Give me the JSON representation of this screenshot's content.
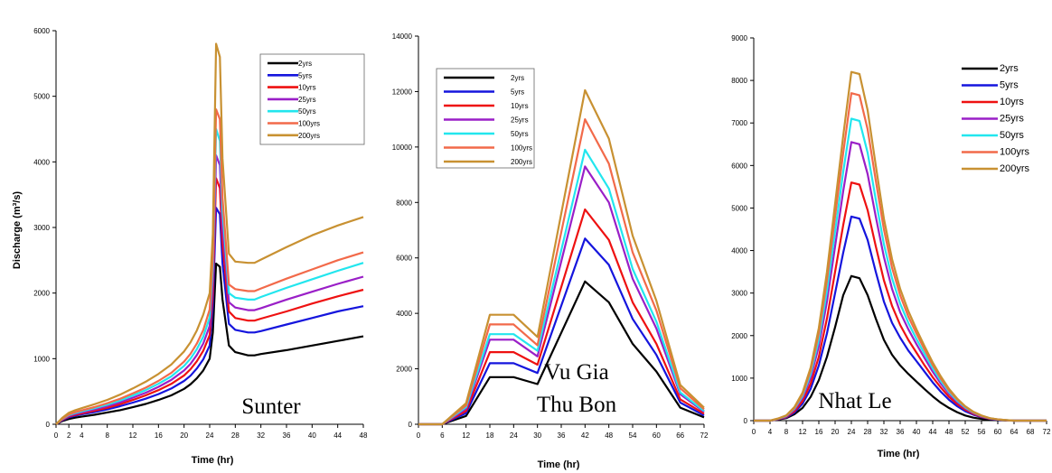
{
  "colors": {
    "2yrs": "#000000",
    "5yrs": "#1515dd",
    "10yrs": "#ee1111",
    "25yrs": "#9a1fc7",
    "50yrs": "#22e6ee",
    "100yrs": "#f26a4a",
    "200yrs": "#c89132"
  },
  "chart_data": [
    {
      "type": "line",
      "annotation": "Sunter",
      "xlabel": "Time (hr)",
      "ylabel": "Discharge (m³/s)",
      "xlim": [
        0,
        48
      ],
      "ylim": [
        0,
        6000
      ],
      "xticks": [
        "0",
        "2",
        "4",
        "8",
        "12",
        "16",
        "20",
        "24",
        "28",
        "32",
        "36",
        "40",
        "44",
        "48"
      ],
      "yticks": [
        "0",
        "1000",
        "2000",
        "3000",
        "4000",
        "5000",
        "6000"
      ],
      "legend_position": "top-right",
      "grid": false,
      "x": [
        0,
        1,
        2,
        3,
        4,
        6,
        8,
        10,
        12,
        14,
        16,
        18,
        20,
        21,
        22,
        23,
        24,
        24.5,
        25,
        25.6,
        26,
        27,
        28,
        30,
        31,
        32,
        36,
        40,
        44,
        48
      ],
      "series": [
        {
          "name": "2yrs",
          "key": "2yrs",
          "values": [
            0,
            50,
            80,
            100,
            115,
            145,
            180,
            215,
            260,
            310,
            370,
            440,
            540,
            610,
            700,
            820,
            1000,
            1400,
            2450,
            2400,
            1900,
            1200,
            1100,
            1050,
            1050,
            1070,
            1130,
            1200,
            1270,
            1340
          ]
        },
        {
          "name": "5yrs",
          "key": "5yrs",
          "values": [
            0,
            60,
            105,
            130,
            150,
            185,
            225,
            275,
            330,
            390,
            460,
            545,
            660,
            740,
            850,
            990,
            1200,
            1800,
            3300,
            3200,
            2450,
            1530,
            1440,
            1400,
            1400,
            1420,
            1520,
            1620,
            1720,
            1800
          ]
        },
        {
          "name": "10yrs",
          "key": "10yrs",
          "values": [
            0,
            68,
            118,
            145,
            165,
            205,
            250,
            305,
            370,
            440,
            520,
            615,
            745,
            840,
            960,
            1120,
            1360,
            2000,
            3750,
            3600,
            2750,
            1720,
            1620,
            1580,
            1580,
            1610,
            1720,
            1840,
            1950,
            2050
          ]
        },
        {
          "name": "25yrs",
          "key": "25yrs",
          "values": [
            0,
            74,
            130,
            160,
            182,
            225,
            275,
            335,
            405,
            480,
            570,
            675,
            820,
            920,
            1055,
            1230,
            1500,
            2200,
            4100,
            3950,
            3000,
            1860,
            1780,
            1740,
            1740,
            1770,
            1900,
            2020,
            2140,
            2250
          ]
        },
        {
          "name": "50yrs",
          "key": "50yrs",
          "values": [
            0,
            80,
            140,
            172,
            197,
            245,
            298,
            362,
            438,
            520,
            617,
            730,
            890,
            1000,
            1145,
            1335,
            1630,
            2400,
            4500,
            4320,
            3250,
            2000,
            1930,
            1900,
            1900,
            1940,
            2080,
            2210,
            2340,
            2460
          ]
        },
        {
          "name": "100yrs",
          "key": "100yrs",
          "values": [
            0,
            85,
            150,
            185,
            210,
            262,
            320,
            388,
            470,
            558,
            660,
            783,
            955,
            1075,
            1230,
            1435,
            1750,
            2550,
            4800,
            4650,
            3450,
            2130,
            2060,
            2030,
            2030,
            2070,
            2220,
            2360,
            2500,
            2620
          ]
        },
        {
          "name": "200yrs",
          "key": "200yrs",
          "values": [
            0,
            100,
            175,
            215,
            245,
            305,
            372,
            452,
            546,
            648,
            767,
            910,
            1110,
            1250,
            1430,
            1670,
            2000,
            2900,
            5800,
            5600,
            4050,
            2600,
            2480,
            2460,
            2460,
            2510,
            2700,
            2880,
            3030,
            3160
          ]
        }
      ]
    },
    {
      "type": "line",
      "annotation": [
        "Vu Gia",
        "Thu Bon"
      ],
      "xlabel": "Time (hr)",
      "ylabel": "",
      "xlim": [
        0,
        72
      ],
      "ylim": [
        0,
        14000
      ],
      "xticks": [
        "0",
        "6",
        "12",
        "18",
        "24",
        "30",
        "36",
        "42",
        "48",
        "54",
        "60",
        "66",
        "72"
      ],
      "yticks": [
        "0",
        "2000",
        "4000",
        "6000",
        "8000",
        "10000",
        "12000",
        "14000"
      ],
      "legend_position": "top-left",
      "grid": false,
      "x": [
        0,
        6,
        12,
        18,
        24,
        30,
        42,
        48,
        54,
        60,
        66,
        72
      ],
      "series": [
        {
          "name": "2yrs",
          "key": "2yrs",
          "values": [
            0,
            0,
            300,
            1700,
            1700,
            1450,
            5150,
            4400,
            2900,
            1900,
            600,
            250
          ]
        },
        {
          "name": "5yrs",
          "key": "5yrs",
          "values": [
            0,
            0,
            400,
            2200,
            2200,
            1850,
            6700,
            5750,
            3800,
            2500,
            780,
            320
          ]
        },
        {
          "name": "10yrs",
          "key": "10yrs",
          "values": [
            0,
            0,
            480,
            2600,
            2600,
            2150,
            7750,
            6650,
            4400,
            2900,
            900,
            380
          ]
        },
        {
          "name": "25yrs",
          "key": "25yrs",
          "values": [
            0,
            0,
            560,
            3050,
            3050,
            2450,
            9300,
            8000,
            5250,
            3450,
            1080,
            450
          ]
        },
        {
          "name": "50yrs",
          "key": "50yrs",
          "values": [
            0,
            0,
            620,
            3250,
            3250,
            2650,
            9900,
            8500,
            5600,
            3700,
            1150,
            480
          ]
        },
        {
          "name": "100yrs",
          "key": "100yrs",
          "values": [
            0,
            0,
            680,
            3600,
            3600,
            2850,
            11000,
            9400,
            6200,
            4100,
            1300,
            540
          ]
        },
        {
          "name": "200yrs",
          "key": "200yrs",
          "values": [
            0,
            0,
            760,
            3950,
            3950,
            3150,
            12050,
            10300,
            6800,
            4450,
            1420,
            600
          ]
        }
      ]
    },
    {
      "type": "line",
      "annotation": "Nhat Le",
      "xlabel": "Time (hr)",
      "ylabel": "",
      "xlim": [
        0,
        72
      ],
      "ylim": [
        0,
        9000
      ],
      "xticks": [
        "0",
        "4",
        "8",
        "12",
        "16",
        "20",
        "24",
        "28",
        "32",
        "36",
        "40",
        "44",
        "48",
        "52",
        "56",
        "60",
        "64",
        "68",
        "72"
      ],
      "yticks": [
        "0",
        "1000",
        "2000",
        "3000",
        "4000",
        "5000",
        "6000",
        "7000",
        "8000",
        "9000"
      ],
      "legend_position": "top-right",
      "grid": false,
      "x": [
        0,
        4,
        6,
        8,
        10,
        12,
        14,
        16,
        18,
        20,
        22,
        24,
        26,
        28,
        30,
        32,
        34,
        36,
        38,
        40,
        42,
        44,
        46,
        48,
        50,
        52,
        54,
        56,
        58,
        60,
        62,
        64,
        68,
        72
      ],
      "series": [
        {
          "name": "2yrs",
          "key": "2yrs",
          "values": [
            0,
            0,
            25,
            60,
            150,
            300,
            560,
            950,
            1500,
            2200,
            2950,
            3400,
            3350,
            2950,
            2400,
            1900,
            1550,
            1300,
            1100,
            920,
            740,
            570,
            420,
            300,
            200,
            120,
            70,
            40,
            20,
            10,
            5,
            0,
            0,
            0
          ]
        },
        {
          "name": "5yrs",
          "key": "5yrs",
          "values": [
            0,
            0,
            30,
            75,
            190,
            400,
            750,
            1300,
            2050,
            3000,
            3950,
            4800,
            4750,
            4250,
            3500,
            2800,
            2300,
            1950,
            1650,
            1400,
            1150,
            900,
            680,
            490,
            340,
            220,
            140,
            80,
            40,
            20,
            10,
            0,
            0,
            0
          ]
        },
        {
          "name": "10yrs",
          "key": "10yrs",
          "values": [
            0,
            0,
            35,
            85,
            220,
            460,
            870,
            1500,
            2400,
            3500,
            4600,
            5600,
            5550,
            4950,
            4100,
            3300,
            2700,
            2250,
            1900,
            1600,
            1300,
            1020,
            780,
            560,
            390,
            260,
            160,
            90,
            45,
            25,
            10,
            0,
            0,
            0
          ]
        },
        {
          "name": "25yrs",
          "key": "25yrs",
          "values": [
            0,
            0,
            40,
            100,
            260,
            540,
            1010,
            1750,
            2800,
            4100,
            5400,
            6550,
            6500,
            5800,
            4800,
            3850,
            3100,
            2550,
            2150,
            1800,
            1470,
            1150,
            870,
            630,
            440,
            290,
            180,
            100,
            50,
            25,
            10,
            0,
            0,
            0
          ]
        },
        {
          "name": "50yrs",
          "key": "50yrs",
          "values": [
            0,
            0,
            45,
            110,
            280,
            580,
            1100,
            1900,
            3050,
            4450,
            5850,
            7100,
            7050,
            6300,
            5200,
            4150,
            3350,
            2750,
            2300,
            1920,
            1570,
            1230,
            930,
            670,
            470,
            310,
            190,
            110,
            55,
            28,
            12,
            0,
            0,
            0
          ]
        },
        {
          "name": "100yrs",
          "key": "100yrs",
          "values": [
            0,
            0,
            48,
            118,
            300,
            620,
            1180,
            2050,
            3300,
            4800,
            6300,
            7700,
            7650,
            6850,
            5650,
            4500,
            3600,
            2950,
            2450,
            2050,
            1670,
            1310,
            990,
            710,
            500,
            330,
            200,
            115,
            58,
            30,
            12,
            0,
            0,
            0
          ]
        },
        {
          "name": "200yrs",
          "key": "200yrs",
          "values": [
            0,
            0,
            50,
            125,
            320,
            660,
            1250,
            2180,
            3500,
            5100,
            6700,
            8200,
            8150,
            7300,
            6000,
            4750,
            3800,
            3100,
            2580,
            2150,
            1750,
            1370,
            1040,
            750,
            520,
            340,
            210,
            120,
            60,
            30,
            12,
            0,
            0,
            0
          ]
        }
      ]
    }
  ]
}
